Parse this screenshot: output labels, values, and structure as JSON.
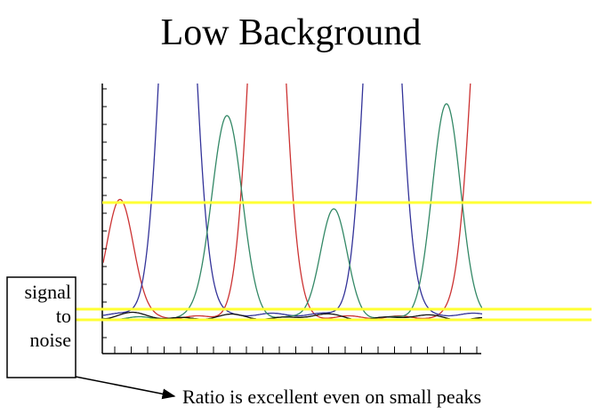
{
  "title": "Low Background",
  "box": {
    "lines": [
      "signal",
      "to",
      "noise"
    ]
  },
  "caption": "Ratio is excellent even on small peaks"
}
